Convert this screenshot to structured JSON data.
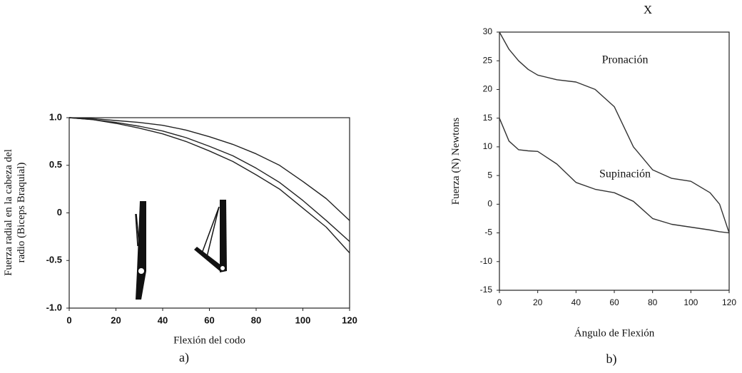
{
  "chart_data": [
    {
      "type": "line",
      "ylabel": [
        "Fuerza radial en la cabeza del",
        "radio (Biceps Braquial)"
      ],
      "xlabel": "Flexión del codo",
      "caption": "a)",
      "x": [
        0,
        10,
        20,
        30,
        40,
        50,
        60,
        70,
        80,
        90,
        100,
        110,
        120
      ],
      "series": [
        {
          "color": "#222222",
          "values": [
            1.0,
            0.99,
            0.97,
            0.95,
            0.92,
            0.87,
            0.8,
            0.72,
            0.62,
            0.5,
            0.33,
            0.15,
            -0.08
          ]
        },
        {
          "color": "#222222",
          "values": [
            1.0,
            0.98,
            0.95,
            0.91,
            0.86,
            0.79,
            0.7,
            0.6,
            0.47,
            0.32,
            0.13,
            -0.08,
            -0.3
          ]
        },
        {
          "color": "#222222",
          "values": [
            1.0,
            0.98,
            0.94,
            0.89,
            0.83,
            0.75,
            0.65,
            0.54,
            0.4,
            0.25,
            0.05,
            -0.15,
            -0.42
          ]
        }
      ],
      "xlim": [
        0,
        120
      ],
      "xticks": [
        0,
        20,
        40,
        60,
        80,
        100,
        120
      ],
      "ylim": [
        -1,
        1
      ],
      "yticks": [
        {
          "value": 1,
          "label": "1.0"
        },
        0.5,
        0,
        -0.5,
        {
          "value": -1,
          "label": "-1.0"
        }
      ]
    },
    {
      "type": "line",
      "title": "X",
      "ylabel": [
        "Fuerza (N) Newtons"
      ],
      "xlabel": "Ángulo de Flexión",
      "caption": "b)",
      "annotations": [
        "Pronación",
        "Supinación"
      ],
      "x": [
        0,
        5,
        10,
        15,
        20,
        30,
        40,
        50,
        60,
        70,
        80,
        90,
        100,
        110,
        115,
        120
      ],
      "series": [
        {
          "color": "#333333",
          "values": [
            30,
            27,
            25,
            23.5,
            22.5,
            21.7,
            21.3,
            20,
            17,
            10,
            6,
            4.5,
            4,
            2,
            0,
            -5
          ]
        },
        {
          "color": "#333333",
          "values": [
            15,
            11,
            9.5,
            9.3,
            9.2,
            7,
            3.8,
            2.6,
            2,
            0.5,
            -2.5,
            -3.5,
            -4,
            -4.5,
            -4.8,
            -5
          ]
        }
      ],
      "xlim": [
        0,
        120
      ],
      "xticks": [
        0,
        20,
        40,
        60,
        80,
        100,
        120
      ],
      "ylim": [
        -15,
        30
      ],
      "yticks": [
        -15,
        -10,
        -5,
        0,
        5,
        10,
        15,
        20,
        25,
        30
      ]
    }
  ]
}
